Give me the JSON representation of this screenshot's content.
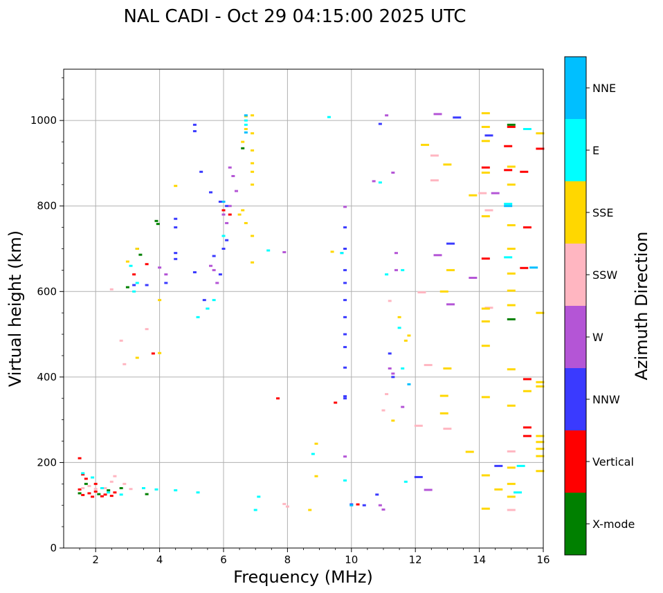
{
  "chart_data": {
    "type": "scatter",
    "title": "NAL CADI - Oct 29 04:15:00 2025 UTC",
    "xlabel": "Frequency (MHz)",
    "ylabel": "Virtual height (km)",
    "xlim": [
      1,
      16
    ],
    "ylim": [
      0,
      1120
    ],
    "xticks": [
      2,
      4,
      6,
      8,
      10,
      12,
      14,
      16
    ],
    "yticks": [
      0,
      200,
      400,
      600,
      800,
      1000
    ],
    "grid": true,
    "colorbar": {
      "label": "Azimuth Direction",
      "position": "right",
      "categories": [
        {
          "name": "X-mode",
          "color": "#008000"
        },
        {
          "name": "Vertical",
          "color": "#ff0000"
        },
        {
          "name": "NNW",
          "color": "#3a3aff"
        },
        {
          "name": "W",
          "color": "#b455d6"
        },
        {
          "name": "SSW",
          "color": "#ffb6c1"
        },
        {
          "name": "SSE",
          "color": "#ffd700"
        },
        {
          "name": "E",
          "color": "#00ffff"
        },
        {
          "name": "NNE",
          "color": "#00bfff"
        }
      ]
    },
    "series": [
      {
        "name": "X-mode",
        "points": [
          [
            1.5,
            128
          ],
          [
            2.1,
            126
          ],
          [
            2.8,
            140
          ],
          [
            3.6,
            126
          ],
          [
            3.9,
            765
          ],
          [
            3.95,
            758
          ],
          [
            3.4,
            686
          ],
          [
            3.3,
            700
          ],
          [
            3.0,
            610
          ],
          [
            6.6,
            935
          ],
          [
            15.0,
            535
          ],
          [
            15.0,
            990
          ],
          [
            1.7,
            150
          ],
          [
            2.4,
            135
          ]
        ]
      },
      {
        "name": "Vertical",
        "points": [
          [
            1.5,
            137
          ],
          [
            1.6,
            124
          ],
          [
            1.8,
            128
          ],
          [
            1.9,
            120
          ],
          [
            2.0,
            132
          ],
          [
            2.2,
            121
          ],
          [
            2.3,
            125
          ],
          [
            2.5,
            122
          ],
          [
            2.6,
            130
          ],
          [
            1.5,
            210
          ],
          [
            1.7,
            162
          ],
          [
            2.0,
            150
          ],
          [
            3.2,
            640
          ],
          [
            3.6,
            664
          ],
          [
            3.8,
            455
          ],
          [
            6.0,
            790
          ],
          [
            6.2,
            780
          ],
          [
            9.5,
            340
          ],
          [
            7.7,
            350
          ],
          [
            10.2,
            102
          ],
          [
            14.2,
            890
          ],
          [
            14.2,
            677
          ],
          [
            14.9,
            884
          ],
          [
            14.9,
            940
          ],
          [
            15.0,
            985
          ],
          [
            15.4,
            880
          ],
          [
            15.5,
            750
          ],
          [
            15.4,
            655
          ],
          [
            15.5,
            395
          ],
          [
            15.5,
            282
          ],
          [
            15.5,
            262
          ],
          [
            15.9,
            934
          ],
          [
            1.6,
            172
          ]
        ]
      },
      {
        "name": "NNW",
        "points": [
          [
            5.1,
            990
          ],
          [
            5.1,
            975
          ],
          [
            5.6,
            832
          ],
          [
            5.3,
            880
          ],
          [
            5.7,
            683
          ],
          [
            5.9,
            810
          ],
          [
            6.1,
            800
          ],
          [
            5.4,
            580
          ],
          [
            5.5,
            560
          ],
          [
            5.9,
            640
          ],
          [
            6.0,
            700
          ],
          [
            6.1,
            720
          ],
          [
            9.8,
            750
          ],
          [
            9.8,
            700
          ],
          [
            9.8,
            650
          ],
          [
            9.8,
            620
          ],
          [
            9.8,
            580
          ],
          [
            9.8,
            540
          ],
          [
            9.8,
            500
          ],
          [
            9.8,
            470
          ],
          [
            9.8,
            422
          ],
          [
            9.8,
            355
          ],
          [
            9.8,
            350
          ],
          [
            10.0,
            102
          ],
          [
            10.4,
            100
          ],
          [
            10.8,
            125
          ],
          [
            10.9,
            992
          ],
          [
            12.1,
            166
          ],
          [
            13.1,
            712
          ],
          [
            13.3,
            1007
          ],
          [
            14.3,
            965
          ],
          [
            14.6,
            192
          ],
          [
            11.3,
            400
          ],
          [
            11.2,
            455
          ],
          [
            4.5,
            770
          ],
          [
            4.5,
            750
          ],
          [
            4.5,
            690
          ],
          [
            4.5,
            676
          ],
          [
            4.2,
            620
          ],
          [
            5.1,
            645
          ],
          [
            3.2,
            615
          ],
          [
            3.6,
            615
          ]
        ]
      },
      {
        "name": "W",
        "points": [
          [
            5.6,
            660
          ],
          [
            5.7,
            650
          ],
          [
            5.8,
            620
          ],
          [
            6.2,
            890
          ],
          [
            6.3,
            870
          ],
          [
            6.0,
            780
          ],
          [
            6.2,
            800
          ],
          [
            6.4,
            835
          ],
          [
            6.1,
            760
          ],
          [
            9.8,
            798
          ],
          [
            9.7,
            690
          ],
          [
            10.7,
            858
          ],
          [
            11.1,
            1012
          ],
          [
            11.3,
            878
          ],
          [
            11.4,
            690
          ],
          [
            11.4,
            650
          ],
          [
            12.7,
            1015
          ],
          [
            13.1,
            570
          ],
          [
            13.8,
            632
          ],
          [
            12.7,
            685
          ],
          [
            12.4,
            136
          ],
          [
            11.2,
            420
          ],
          [
            11.3,
            408
          ],
          [
            10.9,
            100
          ],
          [
            11.0,
            90
          ],
          [
            14.5,
            830
          ],
          [
            4.2,
            640
          ],
          [
            4.0,
            656
          ],
          [
            7.9,
            692
          ],
          [
            9.8,
            214
          ],
          [
            11.6,
            330
          ]
        ]
      },
      {
        "name": "SSW",
        "points": [
          [
            1.6,
            140
          ],
          [
            1.8,
            145
          ],
          [
            2.0,
            138
          ],
          [
            2.3,
            140
          ],
          [
            2.5,
            155
          ],
          [
            2.6,
            168
          ],
          [
            2.9,
            150
          ],
          [
            3.1,
            138
          ],
          [
            2.9,
            430
          ],
          [
            2.8,
            485
          ],
          [
            2.5,
            605
          ],
          [
            3.6,
            512
          ],
          [
            11.2,
            578
          ],
          [
            12.6,
            918
          ],
          [
            12.6,
            860
          ],
          [
            12.2,
            598
          ],
          [
            12.4,
            428
          ],
          [
            12.1,
            286
          ],
          [
            13.0,
            279
          ],
          [
            14.3,
            790
          ],
          [
            14.3,
            562
          ],
          [
            14.1,
            830
          ],
          [
            15.0,
            226
          ],
          [
            15.0,
            89
          ],
          [
            11.0,
            322
          ],
          [
            11.1,
            360
          ],
          [
            7.9,
            103
          ],
          [
            8.0,
            97
          ]
        ]
      },
      {
        "name": "SSE",
        "points": [
          [
            6.7,
            1010
          ],
          [
            6.7,
            980
          ],
          [
            6.6,
            950
          ],
          [
            6.9,
            1012
          ],
          [
            6.9,
            970
          ],
          [
            6.9,
            930
          ],
          [
            6.9,
            900
          ],
          [
            6.9,
            880
          ],
          [
            6.9,
            850
          ],
          [
            6.6,
            790
          ],
          [
            6.7,
            760
          ],
          [
            6.5,
            780
          ],
          [
            4.5,
            847
          ],
          [
            3.0,
            670
          ],
          [
            3.3,
            700
          ],
          [
            4.0,
            580
          ],
          [
            4.0,
            456
          ],
          [
            3.3,
            445
          ],
          [
            6.9,
            730
          ],
          [
            6.9,
            668
          ],
          [
            12.3,
            943
          ],
          [
            13.0,
            897
          ],
          [
            13.1,
            650
          ],
          [
            12.9,
            600
          ],
          [
            13.0,
            420
          ],
          [
            12.9,
            315
          ],
          [
            12.9,
            356
          ],
          [
            13.7,
            225
          ],
          [
            13.8,
            825
          ],
          [
            14.2,
            1017
          ],
          [
            14.2,
            985
          ],
          [
            14.2,
            952
          ],
          [
            14.2,
            878
          ],
          [
            14.2,
            776
          ],
          [
            14.2,
            560
          ],
          [
            14.2,
            530
          ],
          [
            14.2,
            473
          ],
          [
            14.2,
            353
          ],
          [
            14.2,
            170
          ],
          [
            14.2,
            92
          ],
          [
            15.0,
            892
          ],
          [
            15.0,
            850
          ],
          [
            15.0,
            755
          ],
          [
            15.0,
            700
          ],
          [
            15.0,
            642
          ],
          [
            15.0,
            602
          ],
          [
            15.0,
            568
          ],
          [
            15.0,
            418
          ],
          [
            15.0,
            333
          ],
          [
            15.0,
            188
          ],
          [
            15.0,
            150
          ],
          [
            15.0,
            120
          ],
          [
            15.9,
            970
          ],
          [
            15.9,
            550
          ],
          [
            15.9,
            388
          ],
          [
            15.9,
            378
          ],
          [
            15.9,
            262
          ],
          [
            15.9,
            248
          ],
          [
            15.9,
            232
          ],
          [
            15.9,
            215
          ],
          [
            15.9,
            180
          ],
          [
            15.5,
            367
          ],
          [
            8.9,
            244
          ],
          [
            8.9,
            168
          ],
          [
            8.7,
            89
          ],
          [
            11.3,
            298
          ],
          [
            11.5,
            540
          ],
          [
            11.7,
            485
          ],
          [
            11.8,
            497
          ],
          [
            14.6,
            137
          ],
          [
            9.4,
            693
          ]
        ]
      },
      {
        "name": "E",
        "points": [
          [
            1.6,
            175
          ],
          [
            1.9,
            165
          ],
          [
            2.2,
            140
          ],
          [
            2.4,
            130
          ],
          [
            2.8,
            125
          ],
          [
            3.5,
            140
          ],
          [
            3.9,
            137
          ],
          [
            5.2,
            130
          ],
          [
            3.1,
            660
          ],
          [
            3.2,
            600
          ],
          [
            3.3,
            620
          ],
          [
            5.5,
            560
          ],
          [
            5.7,
            580
          ],
          [
            6.0,
            730
          ],
          [
            6.7,
            1000
          ],
          [
            6.7,
            990
          ],
          [
            7.1,
            120
          ],
          [
            7.0,
            89
          ],
          [
            7.4,
            696
          ],
          [
            9.3,
            1008
          ],
          [
            8.8,
            220
          ],
          [
            9.7,
            690
          ],
          [
            9.8,
            158
          ],
          [
            11.5,
            515
          ],
          [
            11.6,
            420
          ],
          [
            11.7,
            155
          ],
          [
            11.6,
            650
          ],
          [
            14.9,
            805
          ],
          [
            14.9,
            680
          ],
          [
            15.2,
            130
          ],
          [
            15.3,
            192
          ],
          [
            15.5,
            980
          ],
          [
            10.9,
            855
          ],
          [
            11.1,
            640
          ],
          [
            4.5,
            135
          ],
          [
            5.2,
            540
          ]
        ]
      },
      {
        "name": "NNE",
        "points": [
          [
            6.7,
            1012
          ],
          [
            6.7,
            972
          ],
          [
            10.0,
            100
          ],
          [
            11.8,
            383
          ],
          [
            15.7,
            656
          ],
          [
            6.0,
            810
          ],
          [
            14.9,
            800
          ]
        ]
      }
    ]
  }
}
